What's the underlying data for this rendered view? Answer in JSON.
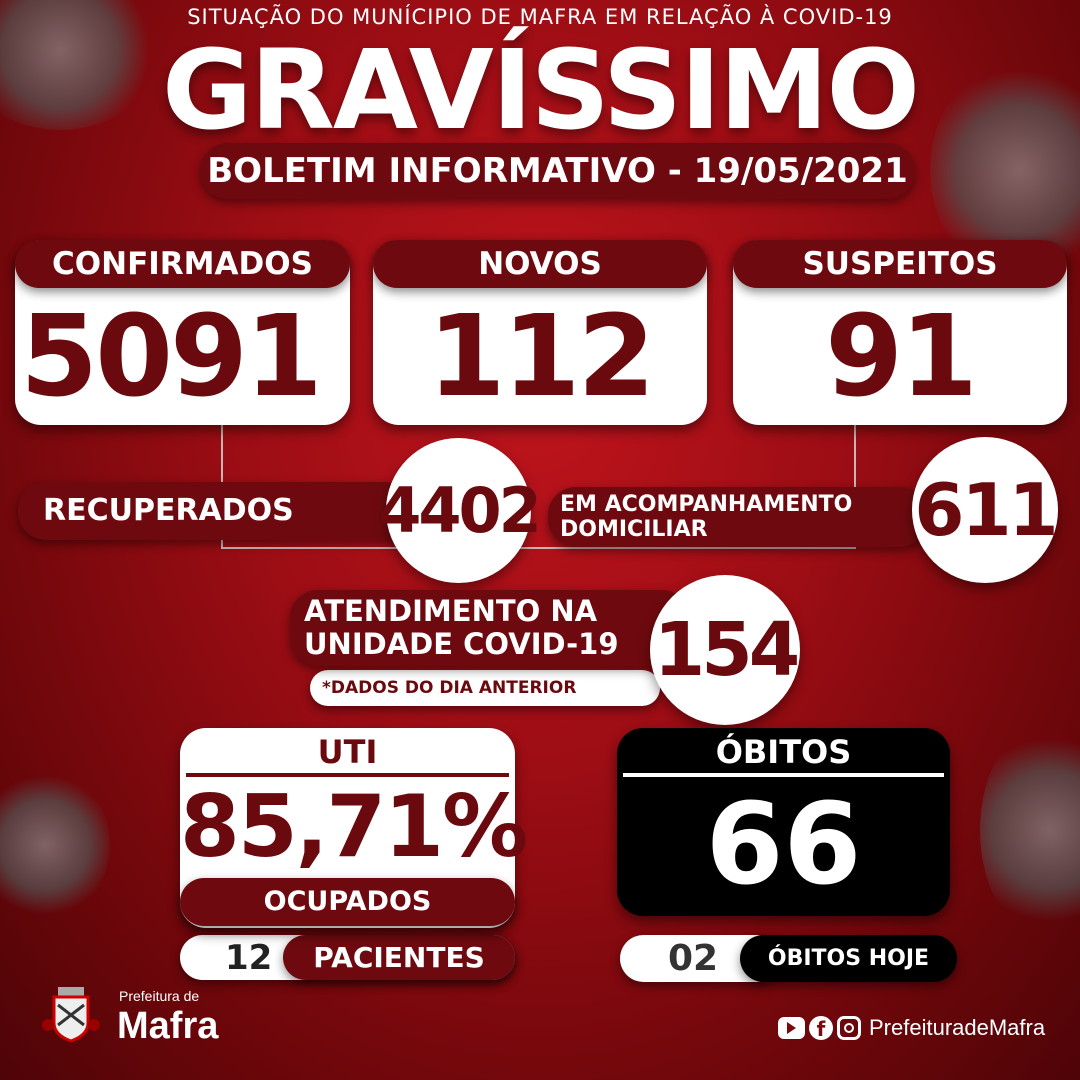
{
  "header": {
    "subtitle": "SITUAÇÃO DO MUNÍCIPIO DE MAFRA EM RELAÇÃO À COVID-19",
    "level": "GRAVÍSSIMO",
    "bulletin": "BOLETIM INFORMATIVO - 19/05/2021"
  },
  "stats": {
    "confirmados": {
      "label": "CONFIRMADOS",
      "value": "5091"
    },
    "novos": {
      "label": "NOVOS",
      "value": "112"
    },
    "suspeitos": {
      "label": "SUSPEITOS",
      "value": "91"
    },
    "recuperados": {
      "label": "RECUPERADOS",
      "value": "4402"
    },
    "acompanhamento": {
      "label_line1": "EM ACOMPANHAMENTO",
      "label_line2": "DOMICILIAR",
      "value": "611"
    },
    "atendimento": {
      "label_line1": "ATENDIMENTO NA",
      "label_line2": "UNIDADE COVID-19",
      "note": "*DADOS DO DIA ANTERIOR",
      "value": "154"
    }
  },
  "uti": {
    "label": "UTI",
    "value": "85,71%",
    "status": "OCUPADOS",
    "patients": "12",
    "patients_label": "PACIENTES"
  },
  "obitos": {
    "label": "ÓBITOS",
    "value": "66",
    "today": "02",
    "today_label": "ÓBITOS HOJE"
  },
  "footer": {
    "org_prefix": "Prefeitura de",
    "org_name": "Mafra",
    "social_handle": "PrefeituradeMafra"
  },
  "colors": {
    "accent": "#6e0a0f",
    "background": "#a50f17",
    "deaths": "#000000"
  }
}
